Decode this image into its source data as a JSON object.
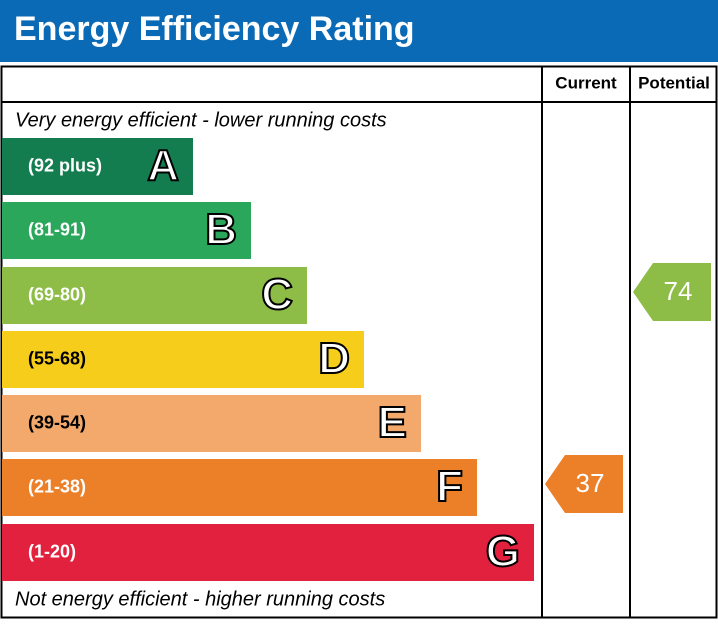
{
  "title": "Energy Efficiency Rating",
  "columns": {
    "current": "Current",
    "potential": "Potential"
  },
  "top_note": "Very energy efficient - lower running costs",
  "bottom_note": "Not energy efficient - higher running costs",
  "bands": [
    {
      "range": "(92 plus)",
      "letter": "A",
      "color": "#137d4f"
    },
    {
      "range": "(81-91)",
      "letter": "B",
      "color": "#2aa75a"
    },
    {
      "range": "(69-80)",
      "letter": "C",
      "color": "#8dbd47"
    },
    {
      "range": "(55-68)",
      "letter": "D",
      "color": "#f5cd1a"
    },
    {
      "range": "(39-54)",
      "letter": "E",
      "color": "#f2a96b"
    },
    {
      "range": "(21-38)",
      "letter": "F",
      "color": "#ec8029"
    },
    {
      "range": "(1-20)",
      "letter": "G",
      "color": "#e2213e"
    }
  ],
  "current": {
    "value": 37,
    "color": "#ec8029"
  },
  "potential": {
    "value": 74,
    "color": "#8dbd47"
  }
}
